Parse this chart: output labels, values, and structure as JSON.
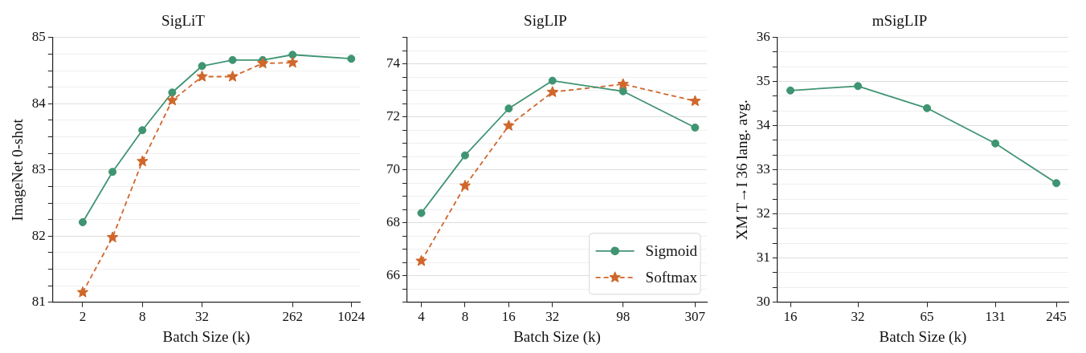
{
  "chart_data": [
    {
      "type": "line",
      "title": "SigLiT",
      "xlabel": "Batch Size (k)",
      "ylabel": "ImageNet 0-shot",
      "log": "x",
      "grid": "y",
      "x": [
        2,
        4,
        8,
        16,
        32,
        65,
        131,
        262,
        1024
      ],
      "xlim": [
        1,
        1250
      ],
      "xticks": [
        2,
        8,
        32,
        262,
        1024
      ],
      "ylim": [
        81,
        85
      ],
      "yticks": [
        81,
        {
          "value": 81.25,
          "label": null
        },
        {
          "value": 81.5,
          "label": null
        },
        {
          "value": 81.75,
          "label": null
        },
        82,
        {
          "value": 82.25,
          "label": null
        },
        {
          "value": 82.5,
          "label": null
        },
        {
          "value": 82.75,
          "label": null
        },
        83,
        {
          "value": 83.25,
          "label": null
        },
        {
          "value": 83.5,
          "label": null
        },
        {
          "value": 83.75,
          "label": null
        },
        84,
        {
          "value": 84.25,
          "label": null
        },
        {
          "value": 84.5,
          "label": null
        },
        {
          "value": 84.75,
          "label": null
        },
        85
      ],
      "series": [
        {
          "color": "#3f9472",
          "marker": "circle",
          "line_style": "solid",
          "values": [
            82.21,
            82.97,
            83.6,
            84.17,
            84.57,
            84.66,
            84.66,
            84.74,
            84.68
          ]
        },
        {
          "color": "#d0672b",
          "marker": "star",
          "line_style": "dashed",
          "x": [
            2,
            4,
            8,
            16,
            32,
            65,
            131,
            262
          ],
          "values": [
            81.15,
            81.98,
            83.13,
            84.05,
            84.41,
            84.41,
            84.61,
            84.62
          ]
        }
      ]
    },
    {
      "type": "line",
      "title": "SigLIP",
      "xlabel": "Batch Size (k)",
      "log": "x",
      "grid": "y",
      "legend": "bottom right",
      "x": [
        4,
        8,
        16,
        32,
        98,
        307
      ],
      "xlim": [
        3.2,
        370
      ],
      "xticks": [
        4,
        8,
        16,
        32,
        98,
        307
      ],
      "ylim": [
        65,
        75
      ],
      "yticks": [
        {
          "value": 65,
          "label": null
        },
        {
          "value": 65.5,
          "label": null
        },
        66,
        {
          "value": 66.5,
          "label": null
        },
        {
          "value": 67,
          "label": null
        },
        {
          "value": 67.5,
          "label": null
        },
        68,
        {
          "value": 68.5,
          "label": null
        },
        {
          "value": 69,
          "label": null
        },
        {
          "value": 69.5,
          "label": null
        },
        70,
        {
          "value": 70.5,
          "label": null
        },
        {
          "value": 71,
          "label": null
        },
        {
          "value": 71.5,
          "label": null
        },
        72,
        {
          "value": 72.5,
          "label": null
        },
        {
          "value": 73,
          "label": null
        },
        {
          "value": 73.5,
          "label": null
        },
        74,
        {
          "value": 74.5,
          "label": null
        },
        {
          "value": 75,
          "label": null
        }
      ],
      "series": [
        {
          "name": "Sigmoid",
          "color": "#3f9472",
          "marker": "circle",
          "line_style": "solid",
          "values": [
            68.37,
            70.55,
            72.32,
            73.37,
            72.97,
            71.6
          ]
        },
        {
          "name": "Softmax",
          "color": "#d0672b",
          "marker": "star",
          "line_style": "dashed",
          "values": [
            66.56,
            69.4,
            71.67,
            72.94,
            73.24,
            72.6
          ]
        }
      ]
    },
    {
      "type": "line",
      "title": "mSigLIP",
      "xlabel": "Batch Size (k)",
      "ylabel": "XM T→I 36 lang. avg.",
      "log": "x",
      "grid": "y",
      "x": [
        16,
        32,
        65,
        131,
        245
      ],
      "xlim": [
        14,
        277
      ],
      "xticks": [
        16,
        32,
        65,
        131,
        245
      ],
      "ylim": [
        30,
        36
      ],
      "yticks": [
        30,
        {
          "value": 30.33,
          "label": null
        },
        {
          "value": 30.67,
          "label": null
        },
        31,
        {
          "value": 31.33,
          "label": null
        },
        {
          "value": 31.67,
          "label": null
        },
        32,
        {
          "value": 32.33,
          "label": null
        },
        {
          "value": 32.67,
          "label": null
        },
        33,
        {
          "value": 33.33,
          "label": null
        },
        {
          "value": 33.67,
          "label": null
        },
        34,
        {
          "value": 34.33,
          "label": null
        },
        {
          "value": 34.67,
          "label": null
        },
        35,
        {
          "value": 35.33,
          "label": null
        },
        {
          "value": 35.67,
          "label": null
        },
        36
      ],
      "series": [
        {
          "color": "#3f9472",
          "marker": "circle",
          "line_style": "solid",
          "values": [
            34.8,
            34.9,
            34.4,
            33.6,
            32.7
          ]
        }
      ]
    }
  ]
}
